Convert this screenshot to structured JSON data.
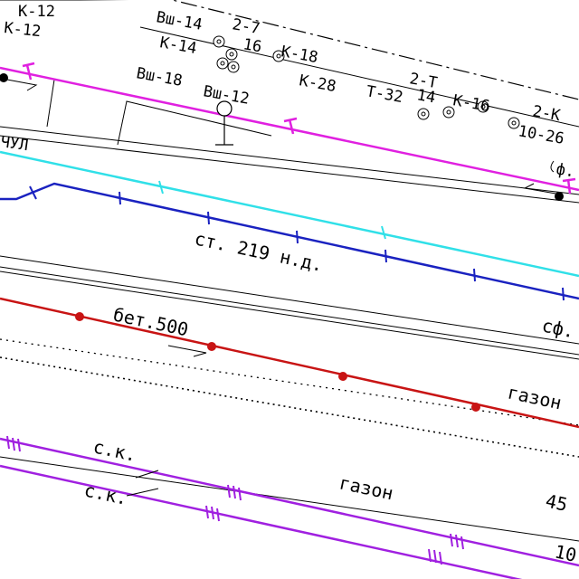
{
  "map": {
    "labels": {
      "k12": "К-12",
      "k12b": "К-12",
      "n2_7": "2-7",
      "vsh14a": "Вш-14",
      "k14": "К-14",
      "n16": "16",
      "k18": "К-18",
      "k28": "К-28",
      "vsh18": "Вш-18",
      "n2_t": "2-Т",
      "n14": "14",
      "k16": "К-16",
      "t32": "Т-32",
      "vsh12": "Вш-12",
      "n2_k": "2-К",
      "n10_26": "10-26",
      "chvl": "ЧУЛ",
      "phi_top": "ф.",
      "st219": "ст. 219 н.д.",
      "bet500": "бет.500",
      "sf": "сф.",
      "gazon1": "газон",
      "gazon2": "газон",
      "ck1": "с.к.",
      "ck2": "с.к.",
      "n45": "45",
      "n10b": "10"
    },
    "colors": {
      "magenta": "#e020e0",
      "cyan": "#30e0e8",
      "blue": "#1a22c0",
      "red": "#c81414",
      "purple": "#a020e0",
      "black": "#000000",
      "gray": "#606060"
    },
    "icons": [
      "tree-icon",
      "lamp-post-icon",
      "arrow-icon"
    ]
  }
}
